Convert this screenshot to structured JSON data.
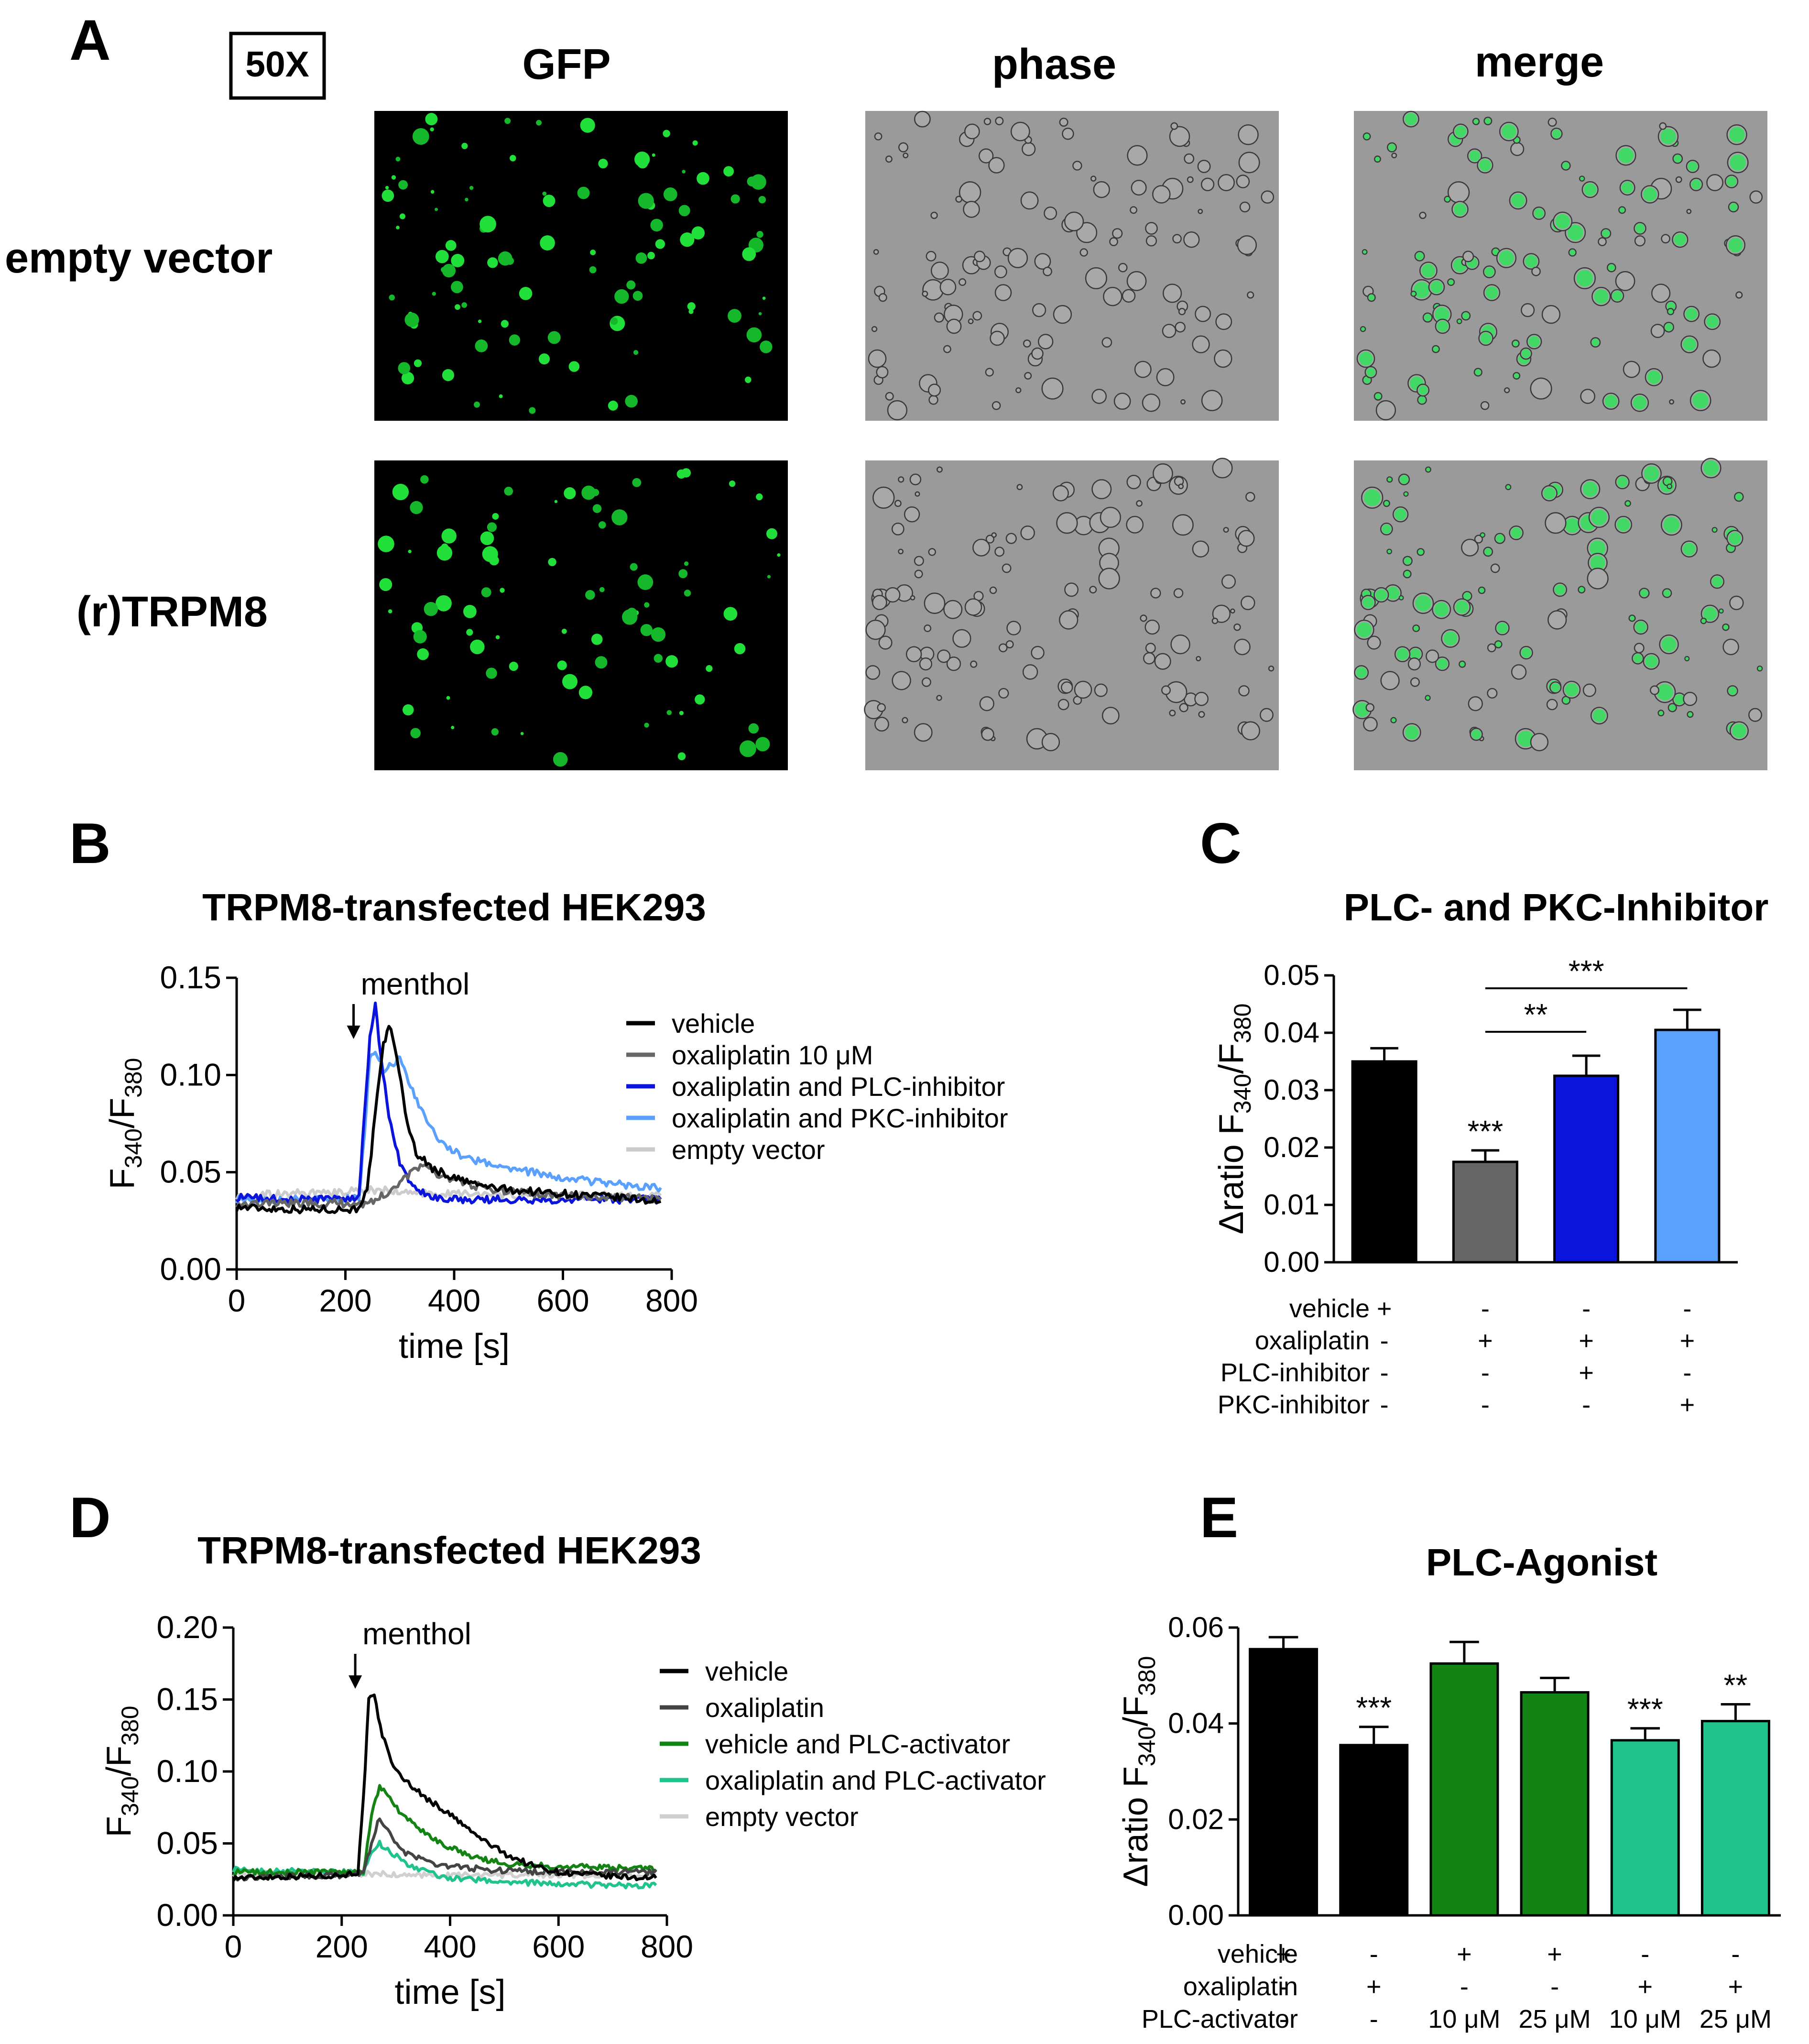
{
  "panelA": {
    "letter": "A",
    "magnification": "50X",
    "columns": [
      "GFP",
      "phase",
      "merge"
    ],
    "rows": [
      "empty vector",
      "(r)TRPM8"
    ]
  },
  "chart_data": [
    {
      "panel": "B",
      "type": "line",
      "title": "TRPM8-transfected HEK293",
      "xlabel": "time [s]",
      "ylabel_main": "F",
      "ylabel_sub1": "340",
      "ylabel_sep": "/F",
      "ylabel_sub2": "380",
      "xlim": [
        0,
        800
      ],
      "ylim": [
        0,
        0.15
      ],
      "xticks": [
        "0",
        "200",
        "400",
        "600",
        "800"
      ],
      "yticks": [
        "0.00",
        "0.05",
        "0.10",
        "0.15"
      ],
      "annotation": {
        "text": "menthol",
        "x": 215
      },
      "series": [
        {
          "name": "vehicle",
          "color": "#000000",
          "points": [
            [
              0,
              0.032
            ],
            [
              100,
              0.031
            ],
            [
              200,
              0.031
            ],
            [
              220,
              0.031
            ],
            [
              240,
              0.04
            ],
            [
              255,
              0.08
            ],
            [
              270,
              0.115
            ],
            [
              280,
              0.126
            ],
            [
              295,
              0.11
            ],
            [
              310,
              0.08
            ],
            [
              330,
              0.06
            ],
            [
              360,
              0.052
            ],
            [
              400,
              0.047
            ],
            [
              450,
              0.043
            ],
            [
              500,
              0.041
            ],
            [
              600,
              0.039
            ],
            [
              700,
              0.037
            ],
            [
              780,
              0.035
            ]
          ]
        },
        {
          "name": "oxaliplatin 10 μM",
          "color": "#666666",
          "points": [
            [
              0,
              0.034
            ],
            [
              100,
              0.034
            ],
            [
              200,
              0.034
            ],
            [
              240,
              0.034
            ],
            [
              270,
              0.038
            ],
            [
              300,
              0.045
            ],
            [
              330,
              0.052
            ],
            [
              350,
              0.052
            ],
            [
              380,
              0.048
            ],
            [
              420,
              0.044
            ],
            [
              500,
              0.04
            ],
            [
              600,
              0.038
            ],
            [
              700,
              0.037
            ],
            [
              780,
              0.036
            ]
          ]
        },
        {
          "name": "oxaliplatin and PLC-inhibitor",
          "color": "#0a14dc",
          "points": [
            [
              0,
              0.037
            ],
            [
              100,
              0.036
            ],
            [
              200,
              0.036
            ],
            [
              225,
              0.037
            ],
            [
              235,
              0.08
            ],
            [
              245,
              0.12
            ],
            [
              255,
              0.136
            ],
            [
              265,
              0.11
            ],
            [
              280,
              0.08
            ],
            [
              300,
              0.055
            ],
            [
              320,
              0.043
            ],
            [
              350,
              0.038
            ],
            [
              400,
              0.036
            ],
            [
              500,
              0.036
            ],
            [
              600,
              0.036
            ],
            [
              700,
              0.036
            ],
            [
              780,
              0.036
            ]
          ]
        },
        {
          "name": "oxaliplatin and PKC-inhibitor",
          "color": "#5aa0ff",
          "points": [
            [
              0,
              0.036
            ],
            [
              100,
              0.036
            ],
            [
              200,
              0.036
            ],
            [
              225,
              0.037
            ],
            [
              235,
              0.07
            ],
            [
              245,
              0.11
            ],
            [
              255,
              0.113
            ],
            [
              270,
              0.103
            ],
            [
              285,
              0.106
            ],
            [
              300,
              0.108
            ],
            [
              320,
              0.095
            ],
            [
              350,
              0.075
            ],
            [
              380,
              0.065
            ],
            [
              420,
              0.057
            ],
            [
              500,
              0.052
            ],
            [
              600,
              0.047
            ],
            [
              700,
              0.044
            ],
            [
              780,
              0.042
            ]
          ]
        },
        {
          "name": "empty vector",
          "color": "#cccccc",
          "points": [
            [
              0,
              0.038
            ],
            [
              100,
              0.039
            ],
            [
              200,
              0.04
            ],
            [
              250,
              0.041
            ],
            [
              300,
              0.04
            ],
            [
              350,
              0.039
            ],
            [
              400,
              0.039
            ],
            [
              500,
              0.038
            ],
            [
              600,
              0.038
            ],
            [
              700,
              0.038
            ],
            [
              780,
              0.038
            ]
          ]
        }
      ]
    },
    {
      "panel": "C",
      "type": "bar",
      "title": "PLC- and PKC-Inhibitor",
      "ylabel_main": "Δratio F",
      "ylabel_sub1": "340",
      "ylabel_sep": "/F",
      "ylabel_sub2": "380",
      "ylim": [
        0,
        0.05
      ],
      "yticks": [
        "0.00",
        "0.01",
        "0.02",
        "0.03",
        "0.04",
        "0.05"
      ],
      "values": [
        0.035,
        0.0175,
        0.0325,
        0.0405
      ],
      "errors": [
        0.0023,
        0.002,
        0.0035,
        0.0035
      ],
      "colors": [
        "#000000",
        "#666666",
        "#0a14dc",
        "#5aa0ff"
      ],
      "bar_labels": [
        "",
        "***",
        "",
        ""
      ],
      "brackets": [
        {
          "from": 1,
          "to": 2,
          "label": "**"
        },
        {
          "from": 1,
          "to": 3,
          "label": "***"
        }
      ],
      "conditions": [
        {
          "label": "vehicle",
          "values": [
            "+",
            "-",
            "-",
            "-"
          ]
        },
        {
          "label": "oxaliplatin",
          "values": [
            "-",
            "+",
            "+",
            "+"
          ]
        },
        {
          "label": "PLC-inhibitor",
          "values": [
            "-",
            "-",
            "+",
            "-"
          ]
        },
        {
          "label": "PKC-inhibitor",
          "values": [
            "-",
            "-",
            "-",
            "+"
          ]
        }
      ]
    },
    {
      "panel": "D",
      "type": "line",
      "title": "TRPM8-transfected HEK293",
      "xlabel": "time [s]",
      "ylabel_main": "F",
      "ylabel_sub1": "340",
      "ylabel_sep": "/F",
      "ylabel_sub2": "380",
      "xlim": [
        0,
        800
      ],
      "ylim": [
        0,
        0.2
      ],
      "xticks": [
        "0",
        "200",
        "400",
        "600",
        "800"
      ],
      "yticks": [
        "0.00",
        "0.05",
        "0.10",
        "0.15",
        "0.20"
      ],
      "annotation": {
        "text": "menthol",
        "x": 225
      },
      "series": [
        {
          "name": "vehicle",
          "color": "#000000",
          "points": [
            [
              0,
              0.026
            ],
            [
              100,
              0.027
            ],
            [
              200,
              0.028
            ],
            [
              230,
              0.03
            ],
            [
              240,
              0.08
            ],
            [
              250,
              0.15
            ],
            [
              260,
              0.152
            ],
            [
              275,
              0.125
            ],
            [
              300,
              0.1
            ],
            [
              350,
              0.083
            ],
            [
              400,
              0.07
            ],
            [
              450,
              0.055
            ],
            [
              500,
              0.043
            ],
            [
              550,
              0.035
            ],
            [
              600,
              0.03
            ],
            [
              700,
              0.027
            ],
            [
              780,
              0.026
            ]
          ]
        },
        {
          "name": "oxaliplatin",
          "color": "#444444",
          "points": [
            [
              0,
              0.026
            ],
            [
              100,
              0.027
            ],
            [
              200,
              0.028
            ],
            [
              240,
              0.03
            ],
            [
              255,
              0.05
            ],
            [
              270,
              0.068
            ],
            [
              285,
              0.06
            ],
            [
              310,
              0.045
            ],
            [
              350,
              0.038
            ],
            [
              400,
              0.034
            ],
            [
              500,
              0.031
            ],
            [
              600,
              0.03
            ],
            [
              700,
              0.03
            ],
            [
              780,
              0.03
            ]
          ]
        },
        {
          "name": "vehicle and PLC-activator",
          "color": "#138413",
          "points": [
            [
              0,
              0.03
            ],
            [
              100,
              0.03
            ],
            [
              200,
              0.03
            ],
            [
              240,
              0.03
            ],
            [
              255,
              0.07
            ],
            [
              270,
              0.09
            ],
            [
              285,
              0.085
            ],
            [
              310,
              0.07
            ],
            [
              350,
              0.058
            ],
            [
              400,
              0.047
            ],
            [
              450,
              0.04
            ],
            [
              500,
              0.036
            ],
            [
              600,
              0.034
            ],
            [
              700,
              0.033
            ],
            [
              780,
              0.032
            ]
          ]
        },
        {
          "name": "oxaliplatin and PLC-activator",
          "color": "#21c38d",
          "points": [
            [
              0,
              0.032
            ],
            [
              100,
              0.031
            ],
            [
              200,
              0.03
            ],
            [
              240,
              0.03
            ],
            [
              255,
              0.045
            ],
            [
              270,
              0.05
            ],
            [
              285,
              0.046
            ],
            [
              310,
              0.038
            ],
            [
              350,
              0.031
            ],
            [
              400,
              0.026
            ],
            [
              500,
              0.023
            ],
            [
              600,
              0.022
            ],
            [
              700,
              0.021
            ],
            [
              780,
              0.021
            ]
          ]
        },
        {
          "name": "empty vector",
          "color": "#d0d0d0",
          "points": [
            [
              0,
              0.029
            ],
            [
              100,
              0.029
            ],
            [
              200,
              0.029
            ],
            [
              260,
              0.029
            ],
            [
              300,
              0.028
            ],
            [
              400,
              0.028
            ],
            [
              500,
              0.028
            ],
            [
              600,
              0.028
            ],
            [
              700,
              0.028
            ],
            [
              780,
              0.028
            ]
          ]
        }
      ]
    },
    {
      "panel": "E",
      "type": "bar",
      "title": "PLC-Agonist",
      "ylabel_main": "Δratio F",
      "ylabel_sub1": "340",
      "ylabel_sep": "/F",
      "ylabel_sub2": "380",
      "ylim": [
        0,
        0.06
      ],
      "yticks": [
        "0.00",
        "0.02",
        "0.04",
        "0.06"
      ],
      "values": [
        0.0555,
        0.0355,
        0.0525,
        0.0465,
        0.0365,
        0.0405
      ],
      "errors": [
        0.0025,
        0.0038,
        0.0045,
        0.003,
        0.0025,
        0.0035
      ],
      "colors": [
        "#000000",
        "#000000",
        "#138413",
        "#138413",
        "#21c38d",
        "#21c38d"
      ],
      "bar_labels": [
        "",
        "***",
        "",
        "",
        "***",
        "**"
      ],
      "conditions": [
        {
          "label": "vehicle",
          "values": [
            "+",
            "-",
            "+",
            "+",
            "-",
            "-"
          ]
        },
        {
          "label": "oxaliplatin",
          "values": [
            "-",
            "+",
            "-",
            "-",
            "+",
            "+"
          ]
        },
        {
          "label": "PLC-activator",
          "values": [
            "-",
            "-",
            "10 μM",
            "25 μM",
            "10 μM",
            "25 μM"
          ]
        }
      ]
    }
  ]
}
